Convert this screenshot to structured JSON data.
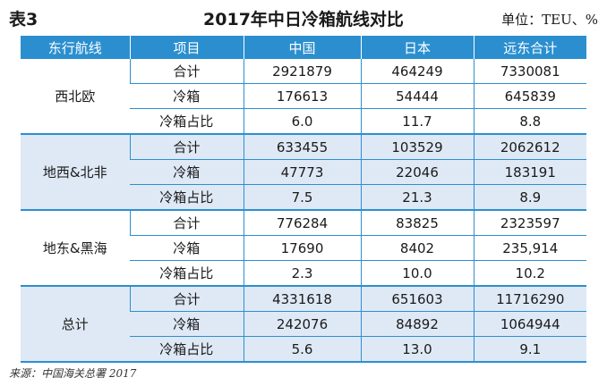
{
  "header": {
    "label": "表3",
    "title": "2017年中日冷箱航线对比",
    "unit": "单位：TEU、%"
  },
  "table": {
    "columns": [
      "东行航线",
      "项目",
      "中国",
      "日本",
      "远东合计"
    ],
    "groups": [
      {
        "route": "西北欧",
        "rows": [
          {
            "item": "合计",
            "china": "2921879",
            "japan": "464249",
            "fareast": "7330081"
          },
          {
            "item": "冷箱",
            "china": "176613",
            "japan": "54444",
            "fareast": "645839"
          },
          {
            "item": "冷箱占比",
            "china": "6.0",
            "japan": "11.7",
            "fareast": "8.8"
          }
        ]
      },
      {
        "route": "地西&北非",
        "rows": [
          {
            "item": "合计",
            "china": "633455",
            "japan": "103529",
            "fareast": "2062612"
          },
          {
            "item": "冷箱",
            "china": "47773",
            "japan": "22046",
            "fareast": "183191"
          },
          {
            "item": "冷箱占比",
            "china": "7.5",
            "japan": "21.3",
            "fareast": "8.9"
          }
        ]
      },
      {
        "route": "地东&黑海",
        "rows": [
          {
            "item": "合计",
            "china": "776284",
            "japan": "83825",
            "fareast": "2323597"
          },
          {
            "item": "冷箱",
            "china": "17690",
            "japan": "8402",
            "fareast": "235,914"
          },
          {
            "item": "冷箱占比",
            "china": "2.3",
            "japan": "10.0",
            "fareast": "10.2"
          }
        ]
      },
      {
        "route": "总计",
        "rows": [
          {
            "item": "合计",
            "china": "4331618",
            "japan": "651603",
            "fareast": "11716290"
          },
          {
            "item": "冷箱",
            "china": "242076",
            "japan": "84892",
            "fareast": "1064944"
          },
          {
            "item": "冷箱占比",
            "china": "5.6",
            "japan": "13.0",
            "fareast": "9.1"
          }
        ]
      }
    ]
  },
  "footer": {
    "source": "来源：中国海关总署 2017"
  },
  "colors": {
    "header_bg": "#2b8fcf",
    "shaded_bg": "#dfe9f6",
    "rule": "#2b8fcf"
  }
}
